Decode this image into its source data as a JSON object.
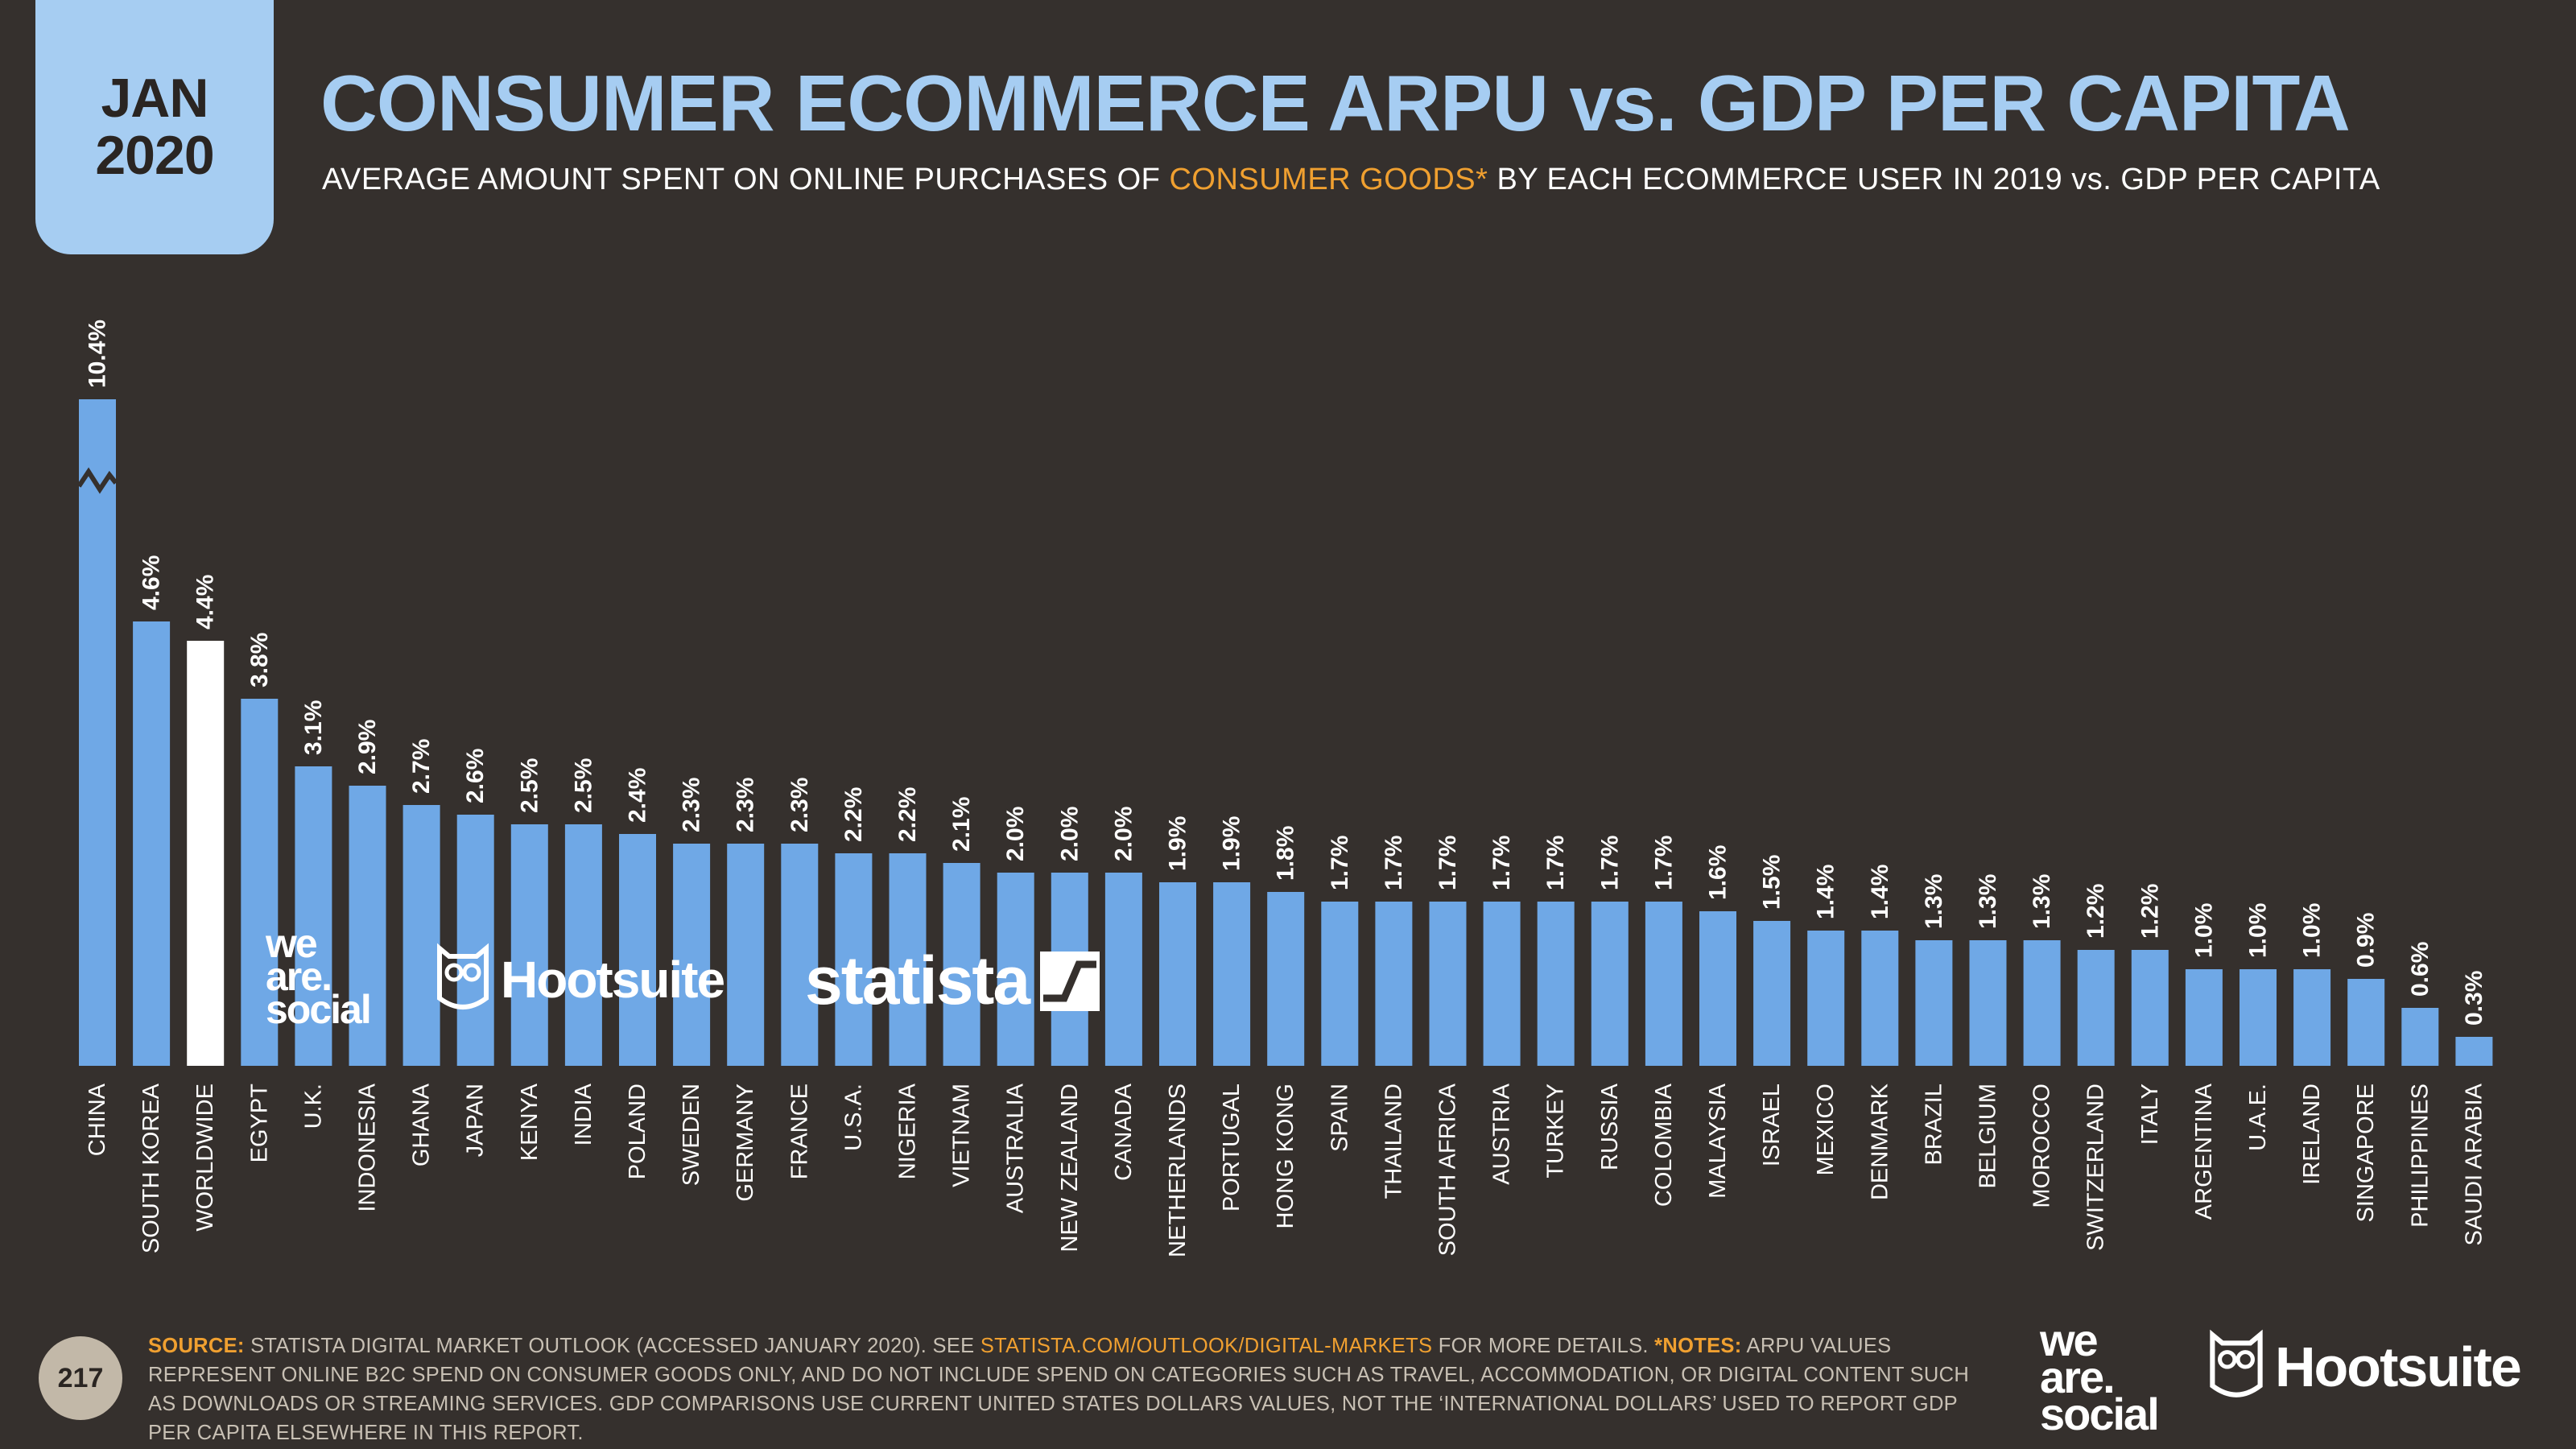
{
  "badge": {
    "month": "JAN",
    "year": "2020"
  },
  "header": {
    "title": "CONSUMER ECOMMERCE ARPU vs. GDP PER CAPITA",
    "subtitle_pre": "AVERAGE AMOUNT SPENT ON ONLINE PURCHASES OF ",
    "subtitle_highlight": "CONSUMER GOODS*",
    "subtitle_post": " BY EACH ECOMMERCE USER IN 2019 vs. GDP PER CAPITA"
  },
  "colors": {
    "background": "#35302d",
    "bar": "#6fa8e6",
    "highlight_bar": "#ffffff",
    "title": "#a6cdf2",
    "accent": "#f0a030"
  },
  "chart_data": {
    "type": "bar",
    "title": "CONSUMER ECOMMERCE ARPU vs. GDP PER CAPITA",
    "ylabel": "",
    "xlabel": "",
    "ylim": [
      0,
      4.6
    ],
    "axis_break": "CHINA bar truncated (10.4%)",
    "highlight": "WORLDWIDE",
    "categories": [
      "CHINA",
      "SOUTH KOREA",
      "WORLDWIDE",
      "EGYPT",
      "U.K.",
      "INDONESIA",
      "GHANA",
      "JAPAN",
      "KENYA",
      "INDIA",
      "POLAND",
      "SWEDEN",
      "GERMANY",
      "FRANCE",
      "U.S.A.",
      "NIGERIA",
      "VIETNAM",
      "AUSTRALIA",
      "NEW ZEALAND",
      "CANADA",
      "NETHERLANDS",
      "PORTUGAL",
      "HONG KONG",
      "SPAIN",
      "THAILAND",
      "SOUTH AFRICA",
      "AUSTRIA",
      "TURKEY",
      "RUSSIA",
      "COLOMBIA",
      "MALAYSIA",
      "ISRAEL",
      "MEXICO",
      "DENMARK",
      "BRAZIL",
      "BELGIUM",
      "MOROCCO",
      "SWITZERLAND",
      "ITALY",
      "ARGENTINA",
      "U.A.E.",
      "IRELAND",
      "SINGAPORE",
      "PHILIPPINES",
      "SAUDI ARABIA"
    ],
    "values": [
      10.4,
      4.6,
      4.4,
      3.8,
      3.1,
      2.9,
      2.7,
      2.6,
      2.5,
      2.5,
      2.4,
      2.3,
      2.3,
      2.3,
      2.2,
      2.2,
      2.1,
      2.0,
      2.0,
      2.0,
      1.9,
      1.9,
      1.8,
      1.7,
      1.7,
      1.7,
      1.7,
      1.7,
      1.7,
      1.7,
      1.6,
      1.5,
      1.4,
      1.4,
      1.3,
      1.3,
      1.3,
      1.2,
      1.2,
      1.0,
      1.0,
      1.0,
      0.9,
      0.6,
      0.3
    ],
    "labels": [
      "10.4%",
      "4.6%",
      "4.4%",
      "3.8%",
      "3.1%",
      "2.9%",
      "2.7%",
      "2.6%",
      "2.5%",
      "2.5%",
      "2.4%",
      "2.3%",
      "2.3%",
      "2.3%",
      "2.2%",
      "2.2%",
      "2.1%",
      "2.0%",
      "2.0%",
      "2.0%",
      "1.9%",
      "1.9%",
      "1.8%",
      "1.7%",
      "1.7%",
      "1.7%",
      "1.7%",
      "1.7%",
      "1.7%",
      "1.7%",
      "1.6%",
      "1.5%",
      "1.4%",
      "1.4%",
      "1.3%",
      "1.3%",
      "1.3%",
      "1.2%",
      "1.2%",
      "1.0%",
      "1.0%",
      "1.0%",
      "0.9%",
      "0.6%",
      "0.3%"
    ]
  },
  "logos": {
    "wearesocial": [
      "we",
      "are.",
      "social"
    ],
    "hootsuite": "Hootsuite",
    "statista": "statista"
  },
  "footer": {
    "page_number": "217",
    "source_label": "SOURCE:",
    "source_text": " STATISTA DIGITAL MARKET OUTLOOK (ACCESSED JANUARY 2020). SEE ",
    "source_link": "STATISTA.COM/OUTLOOK/DIGITAL-MARKETS",
    "source_after": " FOR MORE DETAILS. ",
    "notes_label": "*NOTES:",
    "notes_text": " ARPU VALUES REPRESENT ONLINE B2C SPEND ON CONSUMER GOODS ONLY, AND DO NOT INCLUDE SPEND ON CATEGORIES SUCH AS TRAVEL, ACCOMMODATION, OR DIGITAL CONTENT SUCH AS DOWNLOADS OR STREAMING SERVICES. GDP COMPARISONS USE CURRENT UNITED STATES DOLLARS VALUES, NOT THE ‘INTERNATIONAL DOLLARS’ USED TO REPORT GDP PER CAPITA ELSEWHERE IN THIS REPORT."
  }
}
